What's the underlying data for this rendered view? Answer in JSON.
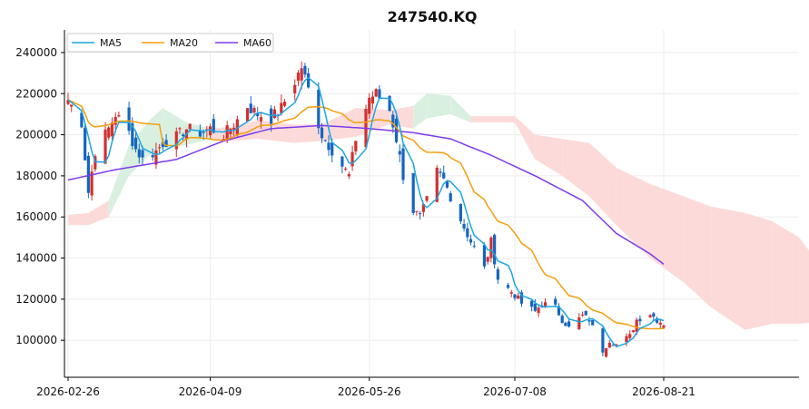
{
  "chart_data": {
    "type": "candlestick",
    "title": "247540.KQ",
    "xlabel": "",
    "ylabel": "",
    "ylim": [
      82000,
      251000
    ],
    "grid": true,
    "legend": "top-left",
    "x_ticks": [
      "2026-02-26",
      "2026-04-09",
      "2026-05-26",
      "2026-07-08",
      "2026-08-21"
    ],
    "y_ticks": [
      100000,
      120000,
      140000,
      160000,
      180000,
      200000,
      220000,
      240000
    ],
    "colors": {
      "up": "#d32f2f",
      "down": "#1565c0",
      "ma5": "#1aa7e0",
      "ma20": "#f59e0b",
      "ma60": "#7c3aed",
      "cloud_bull": "#d9f0e0",
      "cloud_bear": "#fcdada"
    },
    "series": [
      {
        "name": "MA5",
        "key": "ma5"
      },
      {
        "name": "MA20",
        "key": "ma20"
      },
      {
        "name": "MA60",
        "key": "ma60"
      }
    ],
    "close_anchors": [
      {
        "date": "2026-02-26",
        "close": 217000
      },
      {
        "date": "2026-03-02",
        "close": 206000
      },
      {
        "date": "2026-03-04",
        "close": 172000
      },
      {
        "date": "2026-03-06",
        "close": 192000
      },
      {
        "date": "2026-03-10",
        "close": 203000
      },
      {
        "date": "2026-03-12",
        "close": 210000
      },
      {
        "date": "2026-03-16",
        "close": 201000
      },
      {
        "date": "2026-03-18",
        "close": 193000
      },
      {
        "date": "2026-03-20",
        "close": 188000
      },
      {
        "date": "2026-03-24",
        "close": 192000
      },
      {
        "date": "2026-03-26",
        "close": 196000
      },
      {
        "date": "2026-03-30",
        "close": 199000
      },
      {
        "date": "2026-04-02",
        "close": 203000
      },
      {
        "date": "2026-04-06",
        "close": 201000
      },
      {
        "date": "2026-04-09",
        "close": 203000
      },
      {
        "date": "2026-04-13",
        "close": 200000
      },
      {
        "date": "2026-04-16",
        "close": 205000
      },
      {
        "date": "2026-04-20",
        "close": 214000
      },
      {
        "date": "2026-04-23",
        "close": 210000
      },
      {
        "date": "2026-04-27",
        "close": 208000
      },
      {
        "date": "2026-04-30",
        "close": 213000
      },
      {
        "date": "2026-05-04",
        "close": 226000
      },
      {
        "date": "2026-05-06",
        "close": 233000
      },
      {
        "date": "2026-05-08",
        "close": 222000
      },
      {
        "date": "2026-05-12",
        "close": 200000
      },
      {
        "date": "2026-05-14",
        "close": 195000
      },
      {
        "date": "2026-05-18",
        "close": 185000
      },
      {
        "date": "2026-05-20",
        "close": 180000
      },
      {
        "date": "2026-05-22",
        "close": 198000
      },
      {
        "date": "2026-05-26",
        "close": 218000
      },
      {
        "date": "2026-05-28",
        "close": 220000
      },
      {
        "date": "2026-06-01",
        "close": 212000
      },
      {
        "date": "2026-06-03",
        "close": 198000
      },
      {
        "date": "2026-06-05",
        "close": 180000
      },
      {
        "date": "2026-06-08",
        "close": 163000
      },
      {
        "date": "2026-06-10",
        "close": 160000
      },
      {
        "date": "2026-06-12",
        "close": 168000
      },
      {
        "date": "2026-06-15",
        "close": 182000
      },
      {
        "date": "2026-06-17",
        "close": 178000
      },
      {
        "date": "2026-06-19",
        "close": 170000
      },
      {
        "date": "2026-06-23",
        "close": 155000
      },
      {
        "date": "2026-06-25",
        "close": 148000
      },
      {
        "date": "2026-06-29",
        "close": 135000
      },
      {
        "date": "2026-07-01",
        "close": 148000
      },
      {
        "date": "2026-07-03",
        "close": 130000
      },
      {
        "date": "2026-07-08",
        "close": 122000
      },
      {
        "date": "2026-07-10",
        "close": 118000
      },
      {
        "date": "2026-07-14",
        "close": 114000
      },
      {
        "date": "2026-07-16",
        "close": 118000
      },
      {
        "date": "2026-07-20",
        "close": 116000
      },
      {
        "date": "2026-07-22",
        "close": 110000
      },
      {
        "date": "2026-07-24",
        "close": 106000
      },
      {
        "date": "2026-07-28",
        "close": 112000
      },
      {
        "date": "2026-07-30",
        "close": 110000
      },
      {
        "date": "2026-08-03",
        "close": 95000
      },
      {
        "date": "2026-08-05",
        "close": 100000
      },
      {
        "date": "2026-08-07",
        "close": 98000
      },
      {
        "date": "2026-08-11",
        "close": 102000
      },
      {
        "date": "2026-08-13",
        "close": 110000
      },
      {
        "date": "2026-08-17",
        "close": 113000
      },
      {
        "date": "2026-08-19",
        "close": 110000
      },
      {
        "date": "2026-08-21",
        "close": 108000
      }
    ],
    "ma60_anchors": [
      {
        "date": "2026-02-26",
        "value": 178000
      },
      {
        "date": "2026-03-12",
        "value": 183000
      },
      {
        "date": "2026-03-30",
        "value": 188000
      },
      {
        "date": "2026-04-13",
        "value": 197000
      },
      {
        "date": "2026-04-27",
        "value": 203000
      },
      {
        "date": "2026-05-12",
        "value": 204500
      },
      {
        "date": "2026-05-26",
        "value": 203000
      },
      {
        "date": "2026-06-08",
        "value": 201000
      },
      {
        "date": "2026-06-19",
        "value": 198000
      },
      {
        "date": "2026-07-01",
        "value": 190000
      },
      {
        "date": "2026-07-14",
        "value": 180000
      },
      {
        "date": "2026-07-28",
        "value": 168000
      },
      {
        "date": "2026-08-07",
        "value": 152000
      },
      {
        "date": "2026-08-17",
        "value": 142000
      },
      {
        "date": "2026-08-21",
        "value": 137000
      }
    ],
    "cloud_upper": [
      {
        "date": "2026-02-26",
        "value": 161000
      },
      {
        "date": "2026-03-04",
        "value": 162000
      },
      {
        "date": "2026-03-10",
        "value": 168000
      },
      {
        "date": "2026-03-16",
        "value": 195000
      },
      {
        "date": "2026-03-22",
        "value": 207000
      },
      {
        "date": "2026-03-26",
        "value": 213000
      },
      {
        "date": "2026-04-02",
        "value": 206000
      },
      {
        "date": "2026-04-09",
        "value": 203000
      },
      {
        "date": "2026-04-16",
        "value": 204000
      },
      {
        "date": "2026-04-23",
        "value": 207000
      },
      {
        "date": "2026-05-04",
        "value": 205000
      },
      {
        "date": "2026-05-12",
        "value": 205000
      },
      {
        "date": "2026-05-22",
        "value": 213000
      },
      {
        "date": "2026-06-01",
        "value": 212000
      },
      {
        "date": "2026-06-08",
        "value": 214000
      },
      {
        "date": "2026-06-12",
        "value": 220000
      },
      {
        "date": "2026-06-19",
        "value": 219000
      },
      {
        "date": "2026-06-25",
        "value": 209000
      },
      {
        "date": "2026-07-08",
        "value": 209000
      },
      {
        "date": "2026-07-14",
        "value": 200000
      },
      {
        "date": "2026-07-22",
        "value": 198000
      },
      {
        "date": "2026-07-30",
        "value": 196000
      },
      {
        "date": "2026-08-07",
        "value": 184000
      },
      {
        "date": "2026-08-17",
        "value": 176000
      },
      {
        "date": "2026-08-27",
        "value": 170000
      },
      {
        "date": "2026-09-04",
        "value": 165000
      },
      {
        "date": "2026-09-14",
        "value": 162000
      },
      {
        "date": "2026-09-22",
        "value": 158000
      },
      {
        "date": "2026-09-30",
        "value": 150000
      },
      {
        "date": "2026-10-06",
        "value": 137000
      }
    ],
    "cloud_lower": [
      {
        "date": "2026-02-26",
        "value": 156000
      },
      {
        "date": "2026-03-04",
        "value": 156000
      },
      {
        "date": "2026-03-10",
        "value": 160000
      },
      {
        "date": "2026-03-16",
        "value": 180000
      },
      {
        "date": "2026-03-22",
        "value": 190000
      },
      {
        "date": "2026-03-26",
        "value": 193000
      },
      {
        "date": "2026-04-02",
        "value": 195000
      },
      {
        "date": "2026-04-09",
        "value": 198000
      },
      {
        "date": "2026-04-16",
        "value": 197000
      },
      {
        "date": "2026-04-23",
        "value": 198000
      },
      {
        "date": "2026-05-04",
        "value": 196000
      },
      {
        "date": "2026-05-12",
        "value": 197000
      },
      {
        "date": "2026-05-22",
        "value": 199000
      },
      {
        "date": "2026-06-01",
        "value": 205000
      },
      {
        "date": "2026-06-08",
        "value": 203000
      },
      {
        "date": "2026-06-12",
        "value": 208000
      },
      {
        "date": "2026-06-19",
        "value": 210000
      },
      {
        "date": "2026-06-25",
        "value": 206000
      },
      {
        "date": "2026-07-08",
        "value": 206000
      },
      {
        "date": "2026-07-14",
        "value": 188000
      },
      {
        "date": "2026-07-22",
        "value": 180000
      },
      {
        "date": "2026-07-30",
        "value": 170000
      },
      {
        "date": "2026-08-07",
        "value": 156000
      },
      {
        "date": "2026-08-17",
        "value": 140000
      },
      {
        "date": "2026-08-27",
        "value": 128000
      },
      {
        "date": "2026-09-04",
        "value": 116000
      },
      {
        "date": "2026-09-14",
        "value": 105000
      },
      {
        "date": "2026-09-22",
        "value": 108000
      },
      {
        "date": "2026-09-30",
        "value": 108000
      },
      {
        "date": "2026-10-06",
        "value": 109000
      }
    ]
  }
}
